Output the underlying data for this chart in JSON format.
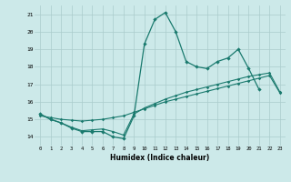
{
  "background_color": "#cce9e9",
  "grid_color": "#aacccc",
  "line_color": "#1a7a6e",
  "xlabel": "Humidex (Indice chaleur)",
  "xlim": [
    -0.5,
    23.5
  ],
  "ylim": [
    13.5,
    21.5
  ],
  "ytick_values": [
    14,
    15,
    16,
    17,
    18,
    19,
    20,
    21
  ],
  "line1_x": [
    0,
    1,
    2,
    3,
    4,
    5,
    6,
    7,
    8,
    9,
    10,
    11,
    12,
    13,
    14,
    15,
    16,
    17,
    18,
    19,
    20,
    21
  ],
  "line1_y": [
    15.3,
    15.0,
    14.8,
    14.5,
    14.3,
    14.3,
    14.3,
    14.0,
    13.9,
    15.2,
    19.3,
    20.7,
    21.1,
    20.0,
    18.3,
    18.0,
    17.9,
    18.3,
    18.5,
    19.0,
    17.9,
    16.7
  ],
  "line2_x": [
    0,
    1,
    2,
    3,
    4,
    5,
    6,
    7,
    8,
    9,
    10,
    11,
    12,
    13,
    14,
    15,
    16,
    17,
    18,
    19,
    20,
    21,
    22,
    23
  ],
  "line2_y": [
    15.2,
    15.1,
    15.0,
    14.95,
    14.9,
    14.95,
    15.0,
    15.1,
    15.2,
    15.4,
    15.6,
    15.8,
    16.0,
    16.15,
    16.3,
    16.45,
    16.6,
    16.75,
    16.9,
    17.05,
    17.2,
    17.35,
    17.5,
    16.5
  ],
  "line3_x": [
    0,
    1,
    2,
    3,
    4,
    5,
    6,
    7,
    8,
    9,
    10,
    11,
    12,
    13,
    14,
    15,
    16,
    17,
    18,
    19,
    20,
    21,
    22,
    23
  ],
  "line3_y": [
    15.3,
    15.0,
    14.8,
    14.55,
    14.35,
    14.4,
    14.45,
    14.3,
    14.1,
    15.3,
    15.65,
    15.9,
    16.15,
    16.35,
    16.55,
    16.7,
    16.85,
    17.0,
    17.15,
    17.3,
    17.45,
    17.55,
    17.65,
    16.55
  ]
}
